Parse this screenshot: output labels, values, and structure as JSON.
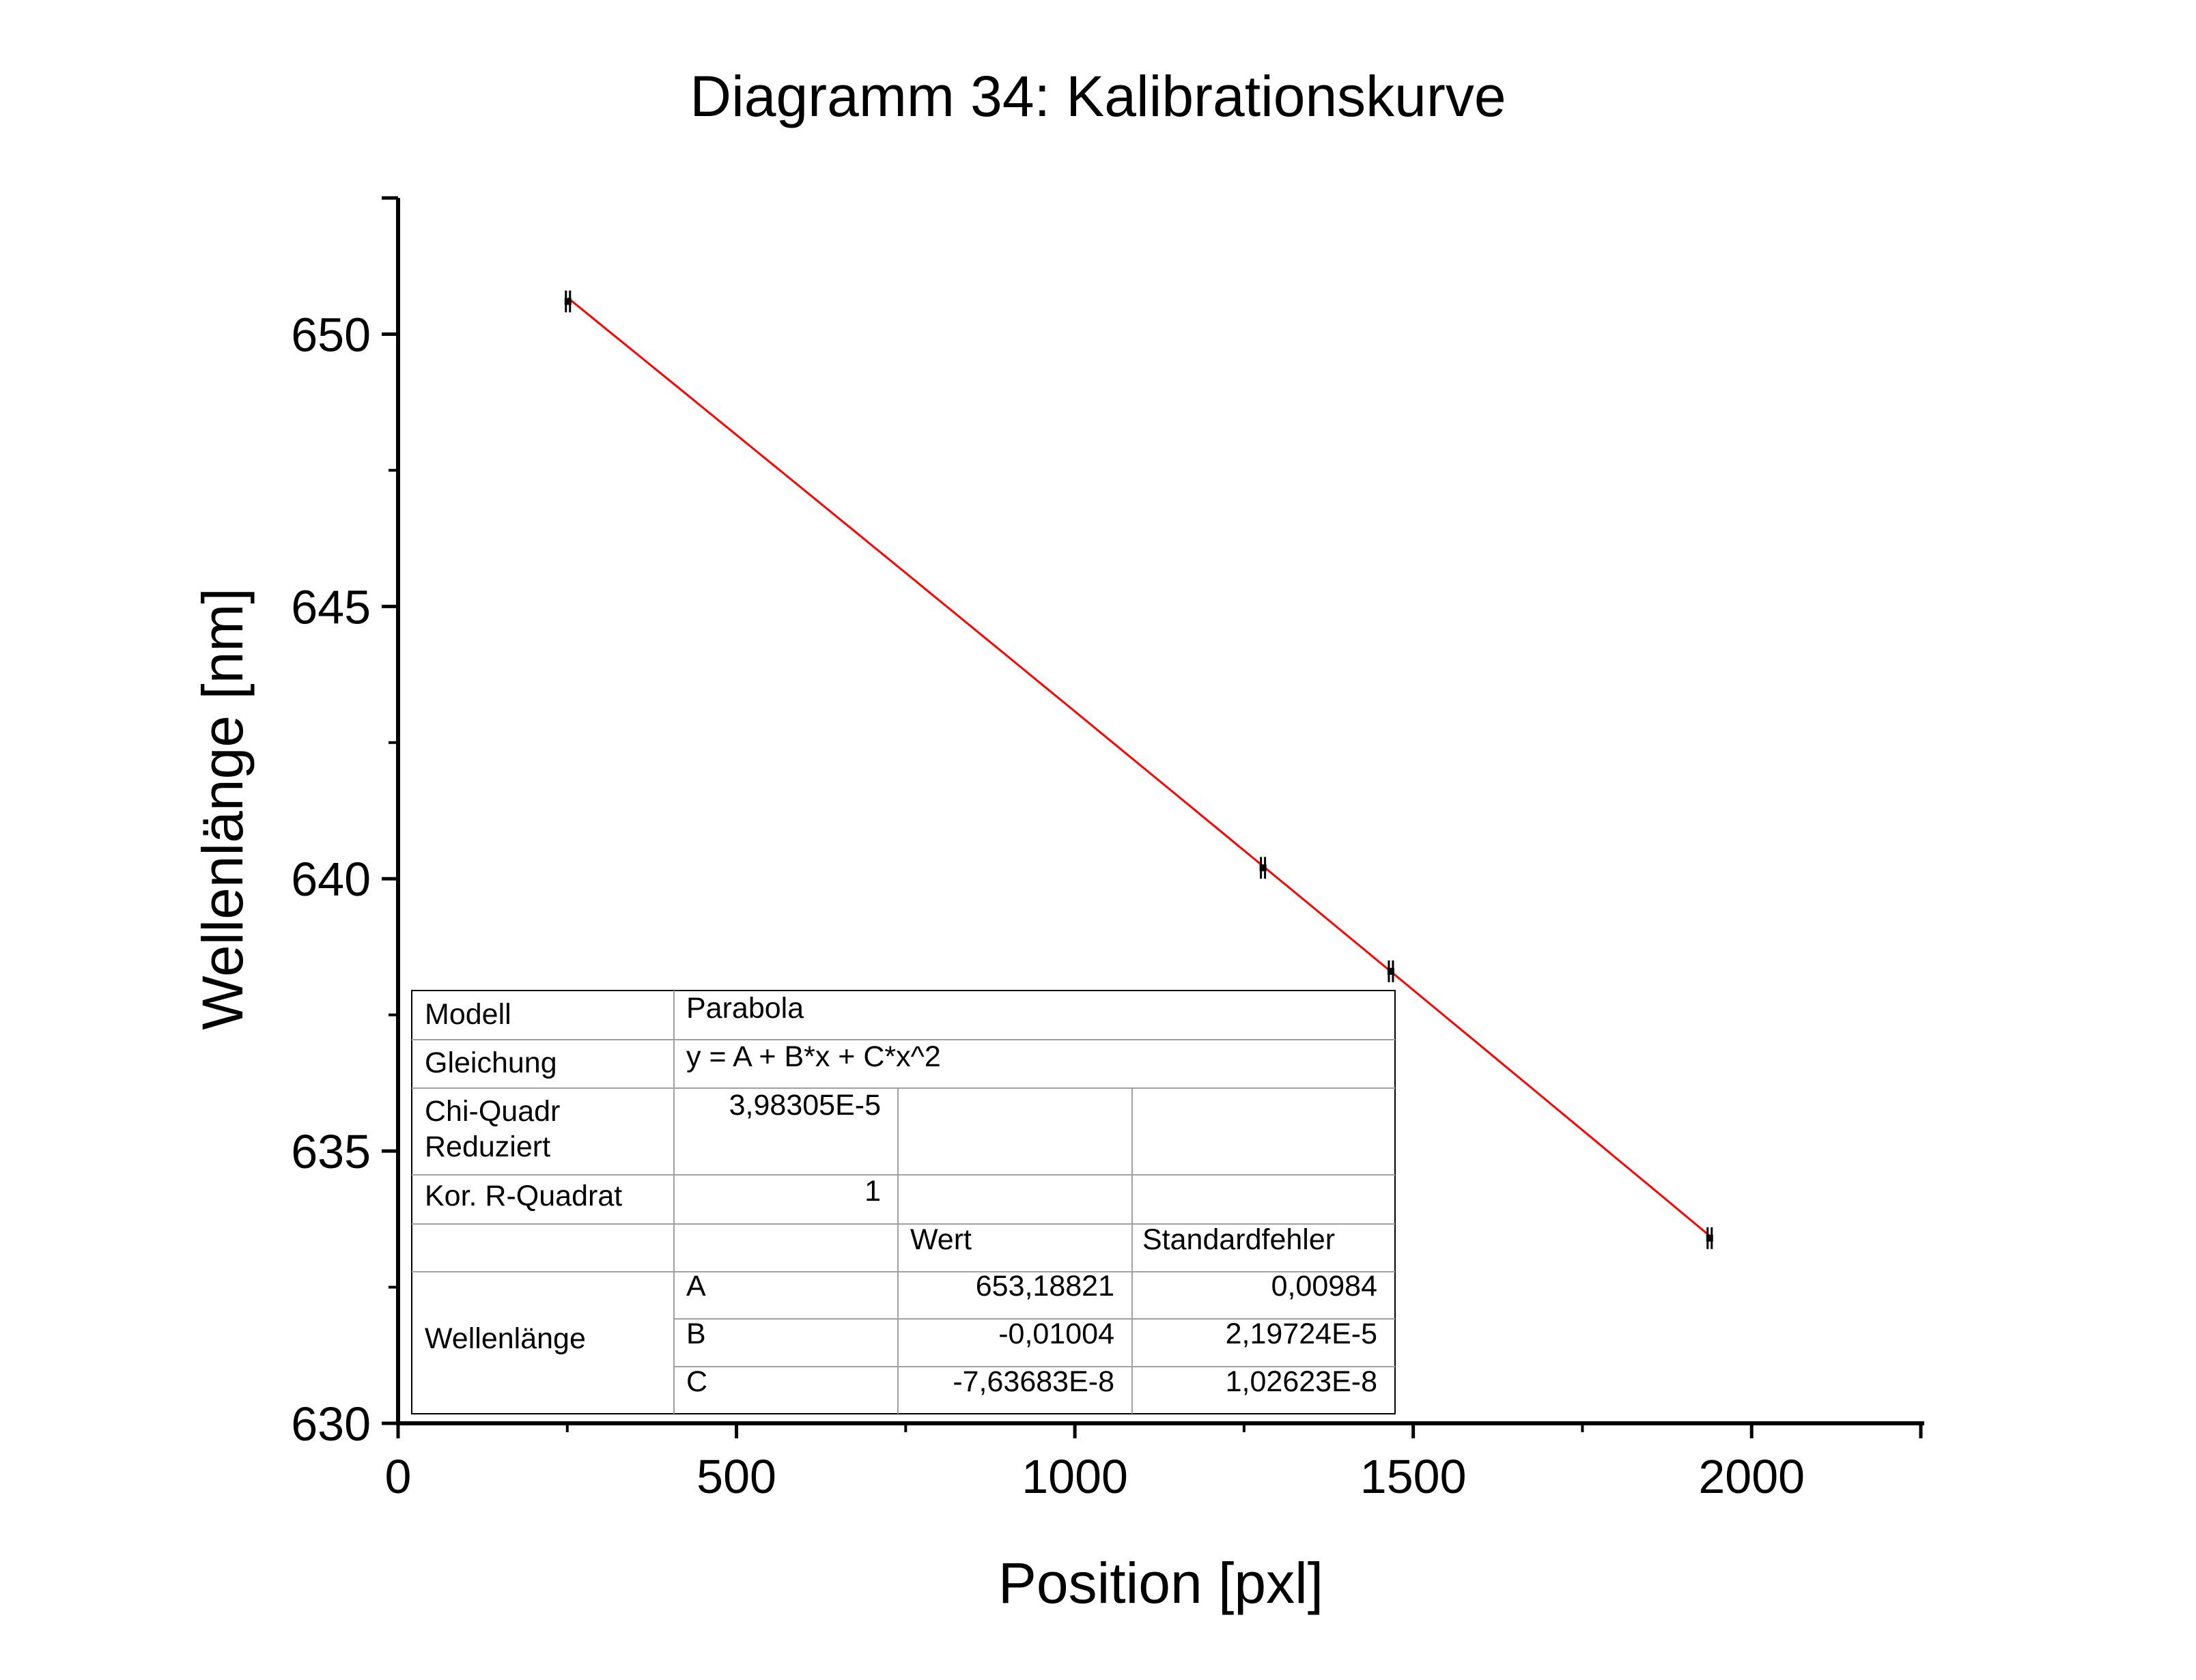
{
  "chart_data": {
    "type": "scatter",
    "title": "Diagramm 34: Kalibrationskurve",
    "xlabel": "Position [pxl]",
    "ylabel": "Wellenlänge [nm]",
    "xlim": [
      0,
      2250
    ],
    "ylim": [
      630,
      652.5
    ],
    "x_ticks": [
      "0",
      "500",
      "1000",
      "1500",
      "2000"
    ],
    "y_ticks": [
      "630",
      "635",
      "640",
      "645",
      "650"
    ],
    "x_tick_values": [
      0,
      500,
      1000,
      1500,
      2000
    ],
    "y_tick_values": [
      630,
      635,
      640,
      645,
      650
    ],
    "grid": false,
    "series": [
      {
        "x": [
          251,
          1278,
          1467,
          1938
        ],
        "y": [
          650.6,
          640.2,
          638.3,
          633.4
        ],
        "yerr": [
          0.2,
          0.2,
          0.2,
          0.2
        ]
      }
    ],
    "fit": {
      "color": "#ff0000",
      "model": "parabola",
      "A": 653.18821,
      "B": -0.01004,
      "C": -7.63683e-08,
      "x_range": [
        251,
        1938
      ]
    },
    "fit_table": {
      "modell_label": "Modell",
      "modell_value": "Parabola",
      "gleichung_label": "Gleichung",
      "gleichung_value": "y = A + B*x + C*x^2",
      "chi_label_1": "Chi-Quadr",
      "chi_label_2": "Reduziert",
      "chi_value": "3,98305E-5",
      "r2_label": "Kor. R-Quadrat",
      "r2_value": "1",
      "header_wert": "Wert",
      "header_fehler": "Standardfehler",
      "group_label": "Wellenlänge",
      "params": [
        {
          "name": "A",
          "value": "653,18821",
          "error": "0,00984"
        },
        {
          "name": "B",
          "value": "-0,01004",
          "error": "2,19724E-5"
        },
        {
          "name": "C",
          "value": "-7,63683E-8",
          "error": "1,02623E-8"
        }
      ]
    }
  }
}
